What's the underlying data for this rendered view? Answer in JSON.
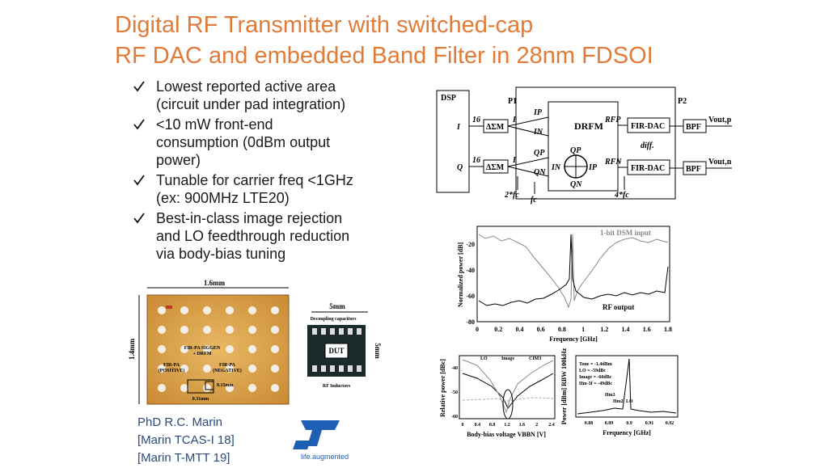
{
  "title": [
    "Digital RF Transmitter with switched-cap",
    "RF DAC and embedded Band Filter in 28nm FDSOI"
  ],
  "bullets": [
    [
      "Lowest reported active area",
      "(circuit under pad integration)"
    ],
    [
      "<10 mW front-end",
      "consumption (0dBm output",
      "power)"
    ],
    [
      "Tunable for carrier freq <1GHz",
      "(ex: 900MHz LTE20)"
    ],
    [
      "Best-in-class image rejection",
      "and LO feedthrough reduction",
      "via body-bias tuning"
    ]
  ],
  "credits": [
    "PhD R.C. Marin",
    "[Marin TCAS-I 18]",
    "[Marin T-MTT 19]"
  ],
  "logo": "life.augmented",
  "block_diagram": {
    "dsp": "DSP",
    "p1": "P1",
    "p2": "P2",
    "i": "I",
    "q": "Q",
    "bits": [
      "16",
      "16"
    ],
    "dsm": [
      "ΔΣM",
      "ΔΣM"
    ],
    "dsm_out": [
      "I",
      "I"
    ],
    "ports_in": [
      "IP",
      "IN",
      "QP",
      "QN"
    ],
    "drfm": "DRFM",
    "quad": [
      "QP",
      "QN",
      "IN",
      "IP"
    ],
    "rf": [
      "RFP",
      "RFN"
    ],
    "dac": [
      "FIR-DAC",
      "FIR-DAC"
    ],
    "diff": "diff.",
    "bpf": [
      "BPF",
      "BPF"
    ],
    "out": [
      "Vout,p",
      "Vout,n"
    ],
    "clocks": [
      "2*fc",
      "fc",
      "4*fc"
    ]
  },
  "spectrum": {
    "ylabel": "Normalized power [dB]",
    "xlabel": "Frequency [GHz]",
    "yticks": [
      -20,
      -40,
      -60,
      -80
    ],
    "xticks": [
      0,
      0.2,
      0.4,
      0.6,
      0.8,
      1,
      1.2,
      1.4,
      1.6,
      1.8
    ],
    "annotations": [
      "1-bit DSM input",
      "RF output"
    ]
  },
  "plot_bias": {
    "ylabel": "Relative power [dBc]",
    "xlabel": "Body-bias voltage VBBN [V]",
    "yticks": [
      -40,
      -50,
      -60
    ],
    "xticks": [
      0,
      0.4,
      0.8,
      1.2,
      1.6,
      2,
      2.4
    ],
    "legend": [
      "LO",
      "Image",
      "CIM3"
    ]
  },
  "plot_tone": {
    "ylabel": "Power [dBm] RBW 100kHz",
    "xlabel": "Frequency [GHz]",
    "xticks": [
      0.88,
      0.89,
      0.9,
      0.91,
      0.92
    ],
    "notes": [
      "Tone = -1.4dBm",
      "LO = -59dBc",
      "Image = -60dBc",
      "Hm-3f = -49dBc"
    ],
    "markers": [
      "Hm3",
      "Hm2",
      "LO"
    ]
  },
  "chip": {
    "width": "1.6mm",
    "height": "1.4mm",
    "siggen": [
      "FIR-PA SIGGEN",
      "+ DRFM"
    ],
    "pa_pos": [
      "FIR-PA",
      "(POSITIVE)"
    ],
    "pa_neg": [
      "FIR-PA",
      "(NEGATIVE)"
    ],
    "dims": [
      "0.15mm",
      "0.31mm"
    ]
  },
  "package": {
    "width": "5mm",
    "height": "5mm",
    "caps": "Decoupling capacitors",
    "dut": "DUT",
    "inductors": "RF Inductors"
  }
}
